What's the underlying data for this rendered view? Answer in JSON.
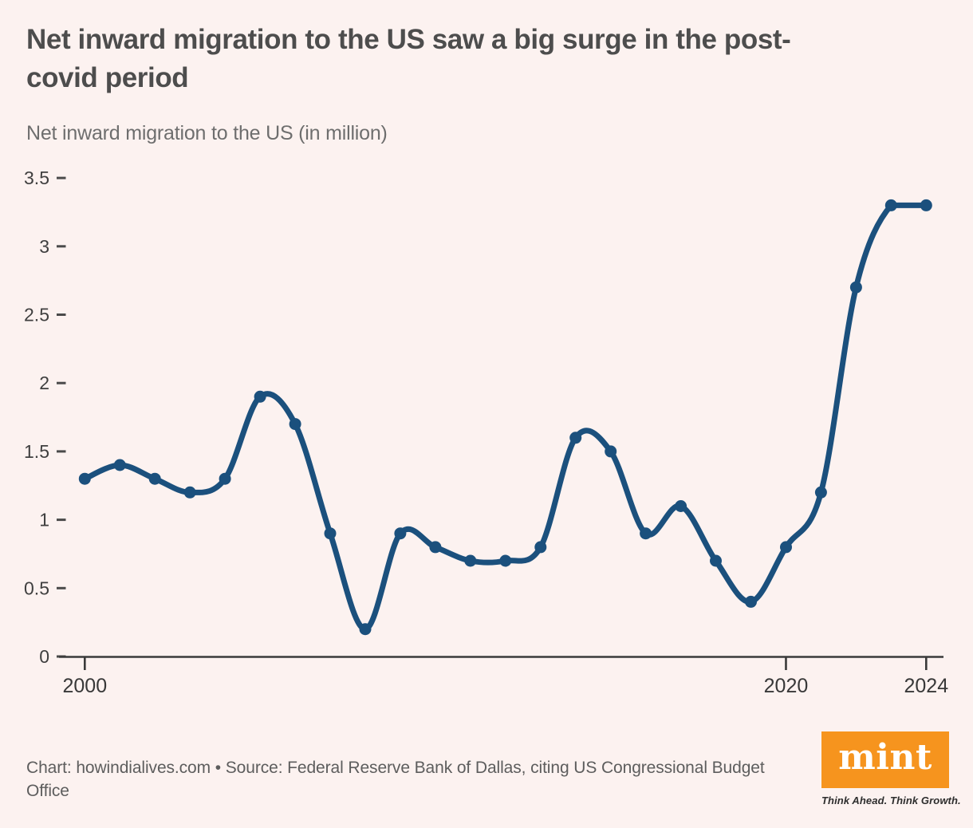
{
  "header": {
    "title_lines": [
      "Net inward migration to the US saw a big surge in the post-",
      "covid period"
    ],
    "subtitle": "Net inward migration to the US (in million)"
  },
  "footer": {
    "attribution": "Chart: howindialives.com • Source: Federal Reserve Bank of Dallas, citing US Congressional Budget Office"
  },
  "logo": {
    "brand": "mint",
    "tagline": "Think Ahead. Think Growth.",
    "bg_color": "#f6941e",
    "brand_text_color": "#ffffff"
  },
  "chart_data": {
    "type": "line",
    "title": "Net inward migration to the US saw a big surge in the post-covid period",
    "subtitle": "Net inward migration to the US (in million)",
    "xlabel": "",
    "ylabel": "",
    "x": [
      2000,
      2001,
      2002,
      2003,
      2004,
      2005,
      2006,
      2007,
      2008,
      2009,
      2010,
      2011,
      2012,
      2013,
      2014,
      2015,
      2016,
      2017,
      2018,
      2019,
      2020,
      2021,
      2022,
      2023,
      2024
    ],
    "values": [
      1.3,
      1.4,
      1.3,
      1.2,
      1.3,
      1.9,
      1.7,
      0.9,
      0.2,
      0.9,
      0.8,
      0.7,
      0.7,
      0.8,
      1.6,
      1.5,
      0.9,
      1.1,
      0.7,
      0.4,
      0.8,
      1.2,
      2.7,
      3.3,
      3.3
    ],
    "xlim": [
      2000,
      2024
    ],
    "ylim": [
      0,
      3.5
    ],
    "y_ticks": [
      0,
      0.5,
      1,
      1.5,
      2,
      2.5,
      3,
      3.5
    ],
    "x_ticks": [
      2000,
      2020,
      2024
    ],
    "grid": false,
    "legend": false,
    "smooth": true,
    "marker": "circle",
    "line_color": "#1b507d",
    "axis_color": "#3a3a3a",
    "tick_label_color": "#3f3f3f",
    "background_color": "#fcf2f0"
  }
}
